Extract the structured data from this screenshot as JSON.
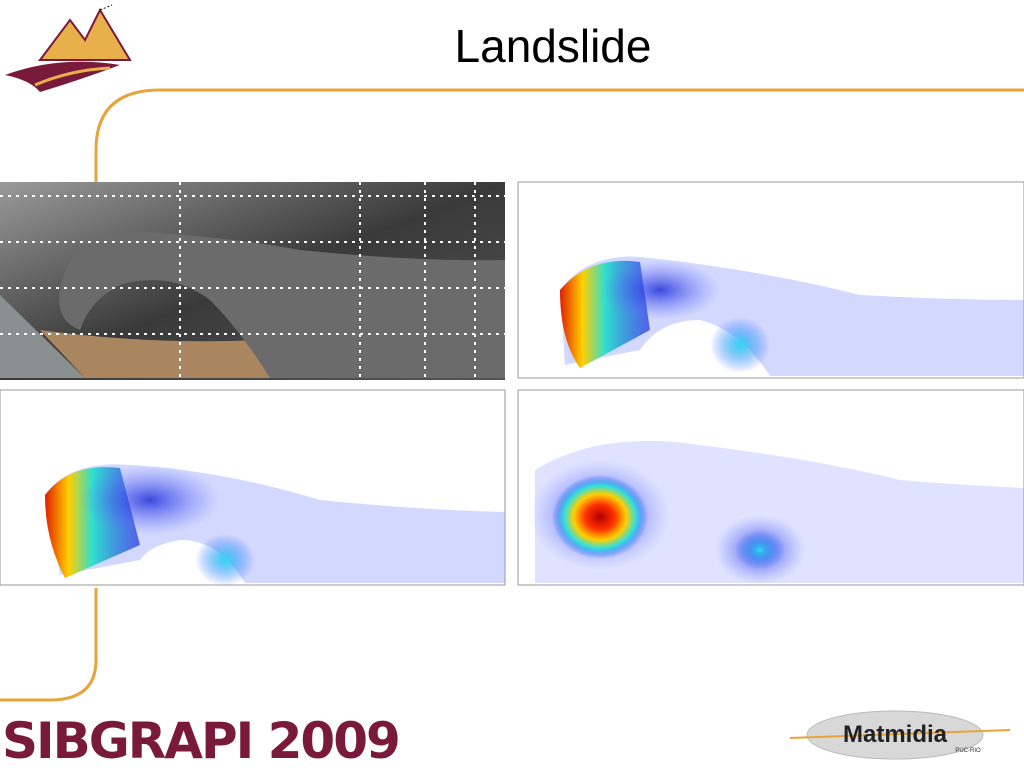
{
  "title": "Landslide",
  "footer": {
    "conference": "SIBGRAPI 2009",
    "logo": "Matmidia",
    "logo_sub": "PUC-RIO"
  }
}
